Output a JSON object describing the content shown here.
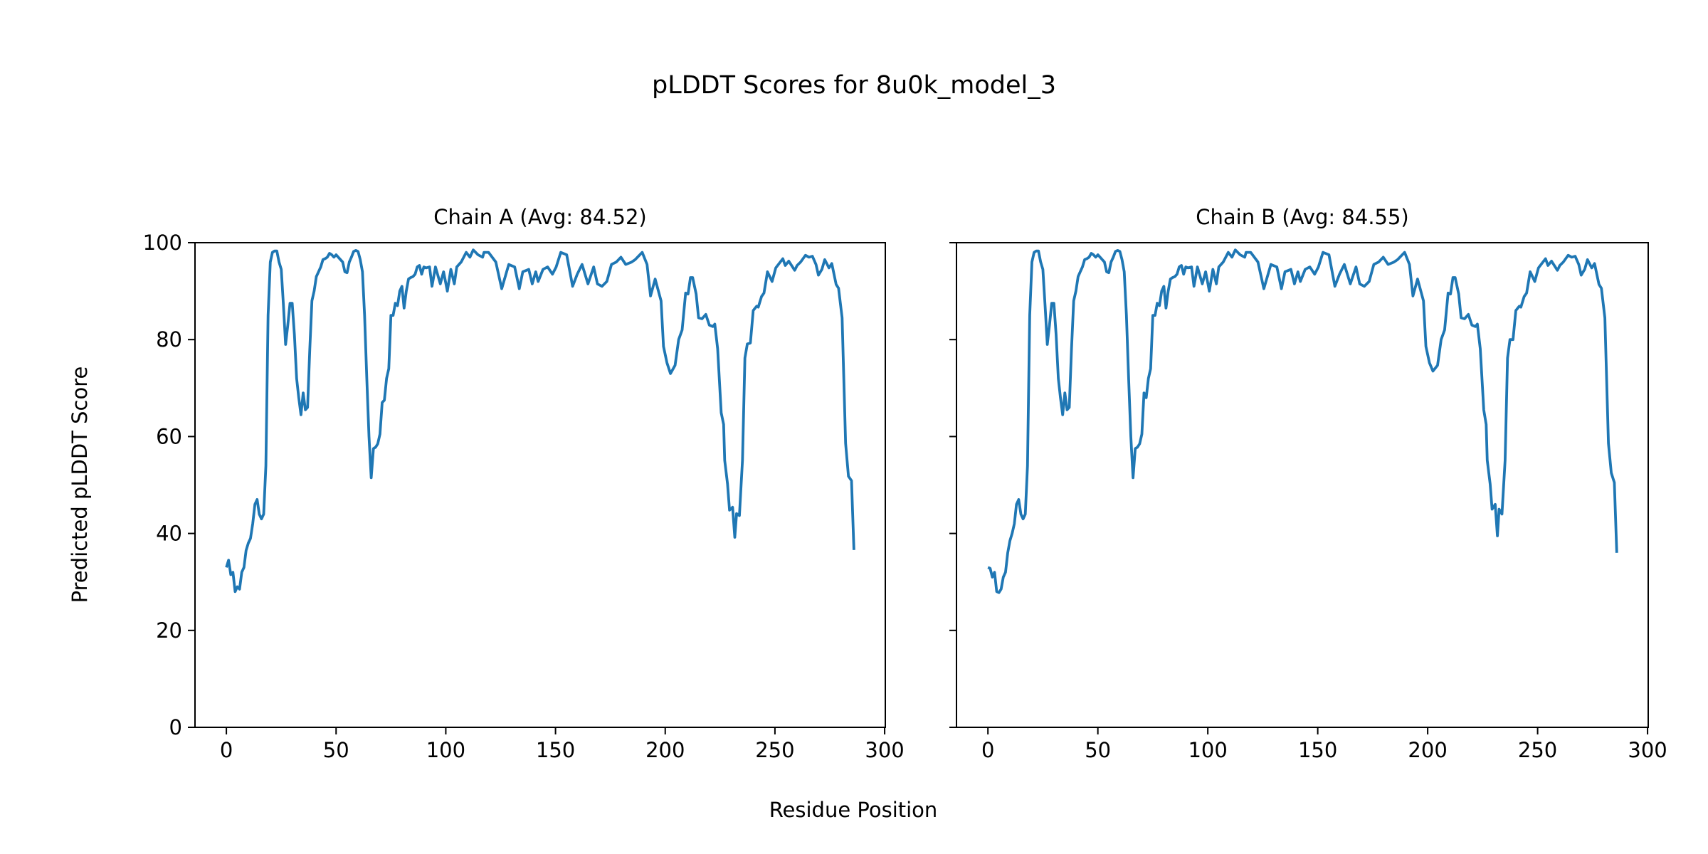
{
  "chart_data": [
    {
      "type": "line",
      "suptitle": "pLDDT Scores for 8u0k_model_3",
      "title": "Chain A (Avg: 84.52)",
      "xlabel": "Residue Position",
      "ylabel": "Predicted pLDDT Score",
      "xlim": [
        -14.3,
        300.3
      ],
      "ylim": [
        0,
        100
      ],
      "xticks": [
        0,
        50,
        100,
        150,
        200,
        250,
        300
      ],
      "yticks": [
        0,
        20,
        40,
        60,
        80,
        100
      ],
      "color": "#1f77b4",
      "x": [
        0,
        1,
        2,
        3,
        4,
        5,
        6,
        7,
        8,
        9,
        10,
        11,
        12,
        13,
        14,
        15,
        16,
        17,
        18,
        19,
        20,
        21,
        22,
        23,
        24,
        25,
        26,
        27,
        28,
        29,
        30,
        31,
        32,
        33,
        34,
        35,
        36,
        37,
        38,
        39,
        40,
        41,
        42,
        43,
        44,
        45,
        46,
        47,
        48,
        49,
        50,
        51,
        52,
        53,
        54,
        55,
        56,
        57,
        58,
        59,
        60,
        61,
        62,
        63,
        64,
        65,
        66,
        67,
        68,
        69,
        70,
        71,
        72,
        73,
        74,
        75,
        76,
        77,
        78,
        79,
        80,
        81,
        82,
        83,
        84,
        85,
        86,
        87,
        88,
        89,
        90,
        91,
        92.6,
        93.7,
        95.3,
        97.5,
        99,
        100.7,
        102.3,
        103.9,
        105,
        107,
        109.3,
        111,
        112.5,
        114.7,
        116.8,
        117.4,
        119.5,
        122.8,
        125.5,
        128.7,
        131.4,
        133.5,
        135.1,
        137.8,
        139.4,
        141,
        142.1,
        144.3,
        146.4,
        148.6,
        150.3,
        152.4,
        155.1,
        157.8,
        159.9,
        162.1,
        164.8,
        167.4,
        169.1,
        171.2,
        173.4,
        175.5,
        177.7,
        179.8,
        182,
        184.7,
        186.3,
        189.5,
        191.7,
        193.3,
        195.4,
        198.1,
        199.2,
        200.8,
        202.4,
        204.5,
        206.1,
        207.7,
        209.3,
        210.4,
        211.5,
        212.5,
        214.1,
        215.2,
        216.8,
        218.5,
        220.1,
        221.7,
        222.6,
        223.9,
        225.5,
        226.6,
        227.1,
        228.4,
        229.3,
        230.7,
        231.7,
        232.5,
        233.8,
        235.2,
        236.3,
        237.4,
        238.8,
        240.1,
        241.7,
        242.4,
        243.9,
        245,
        246.6,
        248.7,
        250.4,
        253.6,
        254.7,
        256.3,
        259,
        260.1,
        261.7,
        263.9,
        265.5,
        267.1,
        268.7,
        269.8,
        271.4,
        272.7,
        274.6,
        275.9,
        277.9,
        279,
        280.6,
        282.2,
        283.5,
        284.9,
        286
      ],
      "y": [
        33,
        34.5,
        31.5,
        32,
        28,
        29,
        28.5,
        32,
        33,
        36.5,
        38,
        39,
        42,
        46,
        47,
        44,
        43,
        44,
        54,
        85,
        96,
        98,
        98.3,
        98.3,
        96,
        94.5,
        87,
        79,
        83,
        87.5,
        87.5,
        81,
        72,
        68,
        64.5,
        69,
        65.5,
        66,
        78,
        88,
        90,
        93,
        94,
        95,
        96.5,
        96.7,
        97,
        97.8,
        97.5,
        97,
        97.5,
        97,
        96.5,
        96,
        94,
        93.8,
        96,
        97,
        98.2,
        98.4,
        98.2,
        96.5,
        94,
        85,
        72,
        60,
        51.5,
        57.5,
        57.8,
        58.5,
        60.5,
        67,
        67.5,
        72,
        74,
        85,
        85,
        87.5,
        87,
        90,
        91,
        86.5,
        90,
        92.5,
        92.8,
        93,
        93.5,
        95,
        95.3,
        93.5,
        95,
        94.8,
        95,
        91,
        95,
        91.5,
        94,
        90,
        94.5,
        91.5,
        95,
        96,
        98,
        97,
        98.5,
        97.5,
        97,
        98,
        98,
        96,
        90.5,
        95.5,
        95,
        90.5,
        94,
        94.5,
        91.5,
        94,
        92,
        94.5,
        95,
        93.5,
        95,
        98,
        97.5,
        91,
        93.5,
        95.5,
        91.5,
        95,
        91.5,
        91,
        92,
        95.5,
        96,
        97,
        95.5,
        96,
        96.5,
        98,
        95.5,
        89,
        92.5,
        88,
        78.6,
        75.2,
        73,
        74.7,
        80,
        82,
        89.6,
        89.4,
        92.8,
        92.8,
        89.4,
        84.5,
        84.3,
        85.2,
        83,
        82.7,
        83.2,
        78.1,
        64.9,
        62.5,
        55.1,
        50.2,
        44.8,
        45.4,
        39.2,
        44.1,
        43.7,
        55.1,
        76.2,
        79.1,
        79.3,
        86,
        86.9,
        86.7,
        88.9,
        89.6,
        94,
        92,
        94.8,
        96.7,
        95.3,
        96.2,
        94.3,
        95.3,
        96,
        97.4,
        97,
        97.2,
        95.5,
        93.3,
        94.5,
        96.5,
        94.8,
        95.7,
        91.4,
        90.6,
        84.5,
        58.6,
        51.8,
        50.9,
        36.6
      ]
    },
    {
      "type": "line",
      "title": "Chain B (Avg: 84.55)",
      "xlim": [
        -14.3,
        300.3
      ],
      "ylim": [
        0,
        100
      ],
      "xticks": [
        0,
        50,
        100,
        150,
        200,
        250,
        300
      ],
      "yticks": [
        0,
        20,
        40,
        60,
        80,
        100
      ],
      "color": "#1f77b4",
      "x": [
        0,
        1,
        2,
        3,
        4,
        5,
        6,
        7,
        8,
        9,
        10,
        11,
        12,
        13,
        14,
        15,
        16,
        17,
        18,
        19,
        20,
        21,
        22,
        23,
        24,
        25,
        26,
        27,
        28,
        29,
        30,
        31,
        32,
        33,
        34,
        35,
        36,
        37,
        38,
        39,
        40,
        41,
        42,
        43,
        44,
        45,
        46,
        47,
        48,
        49,
        50,
        51,
        52,
        53,
        54,
        55,
        56,
        57,
        58,
        59,
        60,
        61,
        62,
        63,
        64,
        65,
        66,
        67,
        68,
        69,
        70,
        71,
        72,
        73,
        74,
        75,
        76,
        77,
        78,
        79,
        80,
        81,
        82,
        83,
        84,
        85,
        86,
        87,
        88,
        89,
        90,
        91,
        92.6,
        93.7,
        95.3,
        97.5,
        99,
        100.7,
        102.3,
        103.9,
        105,
        107,
        109.3,
        111,
        112.5,
        114.7,
        116.8,
        117.4,
        119.5,
        122.8,
        125.5,
        128.7,
        131.4,
        133.5,
        135.1,
        137.8,
        139.4,
        141,
        142.1,
        144.3,
        146.4,
        148.6,
        150.3,
        152.4,
        155.1,
        157.8,
        159.9,
        162.1,
        164.8,
        167.4,
        169.1,
        171.2,
        173.4,
        175.5,
        177.7,
        179.8,
        182,
        184.7,
        186.3,
        189.5,
        191.7,
        193.3,
        195.4,
        198.1,
        199.2,
        200.8,
        202.4,
        204.5,
        206.1,
        207.7,
        209.3,
        210.4,
        211.5,
        212.5,
        214.1,
        215.2,
        216.8,
        218.5,
        220.1,
        221.7,
        222.6,
        223.9,
        225.5,
        226.6,
        227.1,
        228.4,
        229.3,
        230.7,
        231.7,
        232.5,
        233.8,
        235.2,
        236.3,
        237.4,
        238.8,
        240.1,
        241.7,
        242.4,
        243.9,
        245,
        246.6,
        248.7,
        250.4,
        253.6,
        254.7,
        256.3,
        259,
        260.1,
        261.7,
        263.9,
        265.5,
        267.1,
        268.7,
        269.8,
        271.4,
        272.7,
        274.6,
        275.9,
        277.9,
        279,
        280.6,
        282.2,
        283.5,
        284.9,
        286
      ],
      "y": [
        33,
        32.8,
        31,
        32,
        28,
        27.8,
        28.5,
        31,
        32,
        36,
        38.5,
        40,
        42,
        46,
        47,
        44,
        43,
        44,
        54,
        85,
        96,
        98,
        98.3,
        98.3,
        96,
        94.5,
        87,
        79,
        83,
        87.5,
        87.5,
        81,
        72,
        68,
        64.5,
        69,
        65.5,
        66,
        78,
        88,
        90,
        93,
        94,
        95,
        96.5,
        96.7,
        97,
        97.8,
        97.5,
        97,
        97.5,
        97,
        96.5,
        96,
        94,
        93.8,
        96,
        97,
        98.2,
        98.4,
        98.2,
        96.5,
        94,
        85,
        72,
        60,
        51.5,
        57.5,
        57.8,
        58.5,
        60.5,
        69,
        68,
        72,
        74,
        85,
        85,
        87.5,
        87,
        90,
        91,
        86.5,
        90,
        92.5,
        92.8,
        93,
        93.5,
        95,
        95.3,
        93.5,
        95,
        94.8,
        95,
        91,
        95,
        91.5,
        94,
        90,
        94.5,
        91.5,
        95,
        96,
        98,
        97,
        98.5,
        97.5,
        97,
        98,
        98,
        96,
        90.5,
        95.5,
        95,
        90.5,
        94,
        94.5,
        91.5,
        94,
        92,
        94.5,
        95,
        93.5,
        95,
        98,
        97.5,
        91,
        93.5,
        95.5,
        91.5,
        95,
        91.5,
        91,
        92,
        95.5,
        96,
        97,
        95.5,
        96,
        96.5,
        98,
        95.5,
        89,
        92.5,
        88,
        78.6,
        75.2,
        73.5,
        74.7,
        80,
        82,
        89.6,
        89.4,
        92.8,
        92.8,
        89.4,
        84.5,
        84.3,
        85.2,
        83,
        82.7,
        83.2,
        78.1,
        65.5,
        62.5,
        55.1,
        50.2,
        45,
        46,
        39.5,
        45,
        44,
        55.1,
        76.2,
        80,
        80,
        86,
        86.9,
        86.7,
        88.9,
        89.6,
        94,
        92,
        94.8,
        96.7,
        95.3,
        96.2,
        94.3,
        95.3,
        96,
        97.4,
        97,
        97.2,
        95.5,
        93.3,
        94.5,
        96.5,
        94.8,
        95.7,
        91.4,
        90.6,
        84.5,
        58.6,
        52.5,
        50.5,
        36
      ]
    }
  ]
}
